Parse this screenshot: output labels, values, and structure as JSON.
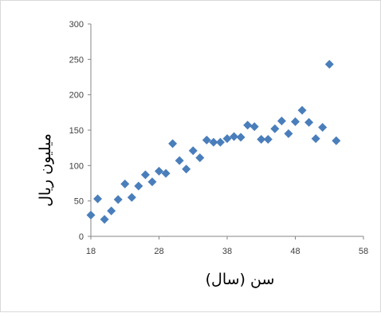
{
  "chart_data": {
    "type": "scatter",
    "title": "",
    "xlabel": "سن (سال)",
    "ylabel": "میلیون ریال",
    "xlim": [
      18,
      58
    ],
    "ylim": [
      0,
      300
    ],
    "x_ticks": [
      18,
      28,
      38,
      48,
      58
    ],
    "y_ticks": [
      0,
      50,
      100,
      150,
      200,
      250,
      300
    ],
    "x_tick_labels": [
      "18",
      "28",
      "38",
      "48",
      "58"
    ],
    "y_tick_labels": [
      "0",
      "50",
      "100",
      "150",
      "200",
      "250",
      "300"
    ],
    "grid": false,
    "legend": "none",
    "marker": "diamond",
    "marker_color": "#4a7ebb",
    "series": [
      {
        "points": [
          [
            18,
            30
          ],
          [
            19,
            53
          ],
          [
            20,
            24
          ],
          [
            21,
            36
          ],
          [
            22,
            52
          ],
          [
            23,
            74
          ],
          [
            24,
            55
          ],
          [
            25,
            71
          ],
          [
            26,
            87
          ],
          [
            27,
            77
          ],
          [
            28,
            92
          ],
          [
            29,
            89
          ],
          [
            30,
            131
          ],
          [
            31,
            107
          ],
          [
            32,
            95
          ],
          [
            33,
            121
          ],
          [
            34,
            111
          ],
          [
            35,
            136
          ],
          [
            36,
            133
          ],
          [
            37,
            133
          ],
          [
            38,
            138
          ],
          [
            39,
            141
          ],
          [
            40,
            140
          ],
          [
            41,
            157
          ],
          [
            42,
            155
          ],
          [
            43,
            137
          ],
          [
            44,
            137
          ],
          [
            45,
            152
          ],
          [
            46,
            163
          ],
          [
            47,
            145
          ],
          [
            48,
            162
          ],
          [
            49,
            178
          ],
          [
            50,
            161
          ],
          [
            51,
            138
          ],
          [
            52,
            154
          ],
          [
            53,
            243
          ],
          [
            54,
            135
          ]
        ]
      }
    ]
  }
}
